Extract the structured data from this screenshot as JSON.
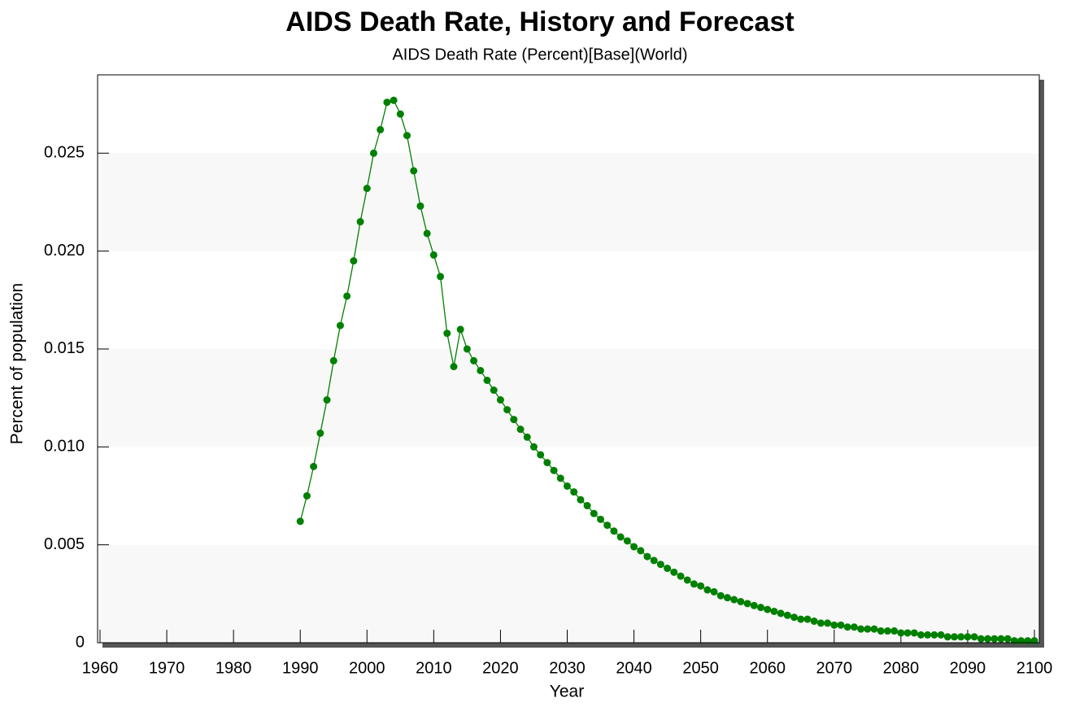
{
  "chart_data": {
    "type": "line",
    "title": "AIDS Death Rate, History and Forecast",
    "subtitle": "AIDS Death Rate (Percent)[Base](World)",
    "x_label": "Year",
    "y_label": "Percent of population",
    "color": "#008000",
    "grid_bands": true,
    "x": [
      1990,
      1991,
      1992,
      1993,
      1994,
      1995,
      1996,
      1997,
      1998,
      1999,
      2000,
      2001,
      2002,
      2003,
      2004,
      2005,
      2006,
      2007,
      2008,
      2009,
      2010,
      2011,
      2012,
      2013,
      2014,
      2015,
      2016,
      2017,
      2018,
      2019,
      2020,
      2021,
      2022,
      2023,
      2024,
      2025,
      2026,
      2027,
      2028,
      2029,
      2030,
      2031,
      2032,
      2033,
      2034,
      2035,
      2036,
      2037,
      2038,
      2039,
      2040,
      2041,
      2042,
      2043,
      2044,
      2045,
      2046,
      2047,
      2048,
      2049,
      2050,
      2051,
      2052,
      2053,
      2054,
      2055,
      2056,
      2057,
      2058,
      2059,
      2060,
      2061,
      2062,
      2063,
      2064,
      2065,
      2066,
      2067,
      2068,
      2069,
      2070,
      2071,
      2072,
      2073,
      2074,
      2075,
      2076,
      2077,
      2078,
      2079,
      2080,
      2081,
      2082,
      2083,
      2084,
      2085,
      2086,
      2087,
      2088,
      2089,
      2090,
      2091,
      2092,
      2093,
      2094,
      2095,
      2096,
      2097,
      2098,
      2099,
      2100
    ],
    "values": [
      0.0062,
      0.0075,
      0.009,
      0.0107,
      0.0124,
      0.0144,
      0.0162,
      0.0177,
      0.0195,
      0.0215,
      0.0232,
      0.025,
      0.0262,
      0.0276,
      0.0277,
      0.027,
      0.0259,
      0.0241,
      0.0223,
      0.0209,
      0.0198,
      0.0187,
      0.0158,
      0.0141,
      0.016,
      0.015,
      0.0144,
      0.0139,
      0.0134,
      0.0129,
      0.0124,
      0.0119,
      0.0114,
      0.0109,
      0.0105,
      0.01,
      0.0096,
      0.0092,
      0.0088,
      0.0084,
      0.008,
      0.0077,
      0.0073,
      0.007,
      0.0066,
      0.0063,
      0.006,
      0.0057,
      0.0054,
      0.0052,
      0.0049,
      0.0047,
      0.0044,
      0.0042,
      0.004,
      0.0038,
      0.0036,
      0.0034,
      0.0032,
      0.003,
      0.0029,
      0.0027,
      0.0026,
      0.0024,
      0.0023,
      0.0022,
      0.0021,
      0.002,
      0.0019,
      0.0018,
      0.0017,
      0.0016,
      0.0015,
      0.0014,
      0.0013,
      0.0012,
      0.0012,
      0.0011,
      0.001,
      0.001,
      0.0009,
      0.0009,
      0.0008,
      0.0008,
      0.0007,
      0.0007,
      0.0007,
      0.0006,
      0.0006,
      0.0006,
      0.0005,
      0.0005,
      0.0005,
      0.0004,
      0.0004,
      0.0004,
      0.0004,
      0.0003,
      0.0003,
      0.0003,
      0.0003,
      0.0003,
      0.0002,
      0.0002,
      0.0002,
      0.0002,
      0.0002,
      0.0001,
      0.0001,
      0.0001,
      0.0001
    ],
    "xlim": [
      1960,
      2100
    ],
    "xticks": [
      1960,
      1970,
      1980,
      1990,
      2000,
      2010,
      2020,
      2030,
      2040,
      2050,
      2060,
      2070,
      2080,
      2090,
      2100
    ],
    "ylim": [
      0,
      0.029
    ],
    "yticks": [
      0,
      0.005,
      {
        "value": 0.01,
        "label": "0.010"
      },
      0.015,
      {
        "value": 0.02,
        "label": "0.020"
      },
      0.025
    ]
  }
}
